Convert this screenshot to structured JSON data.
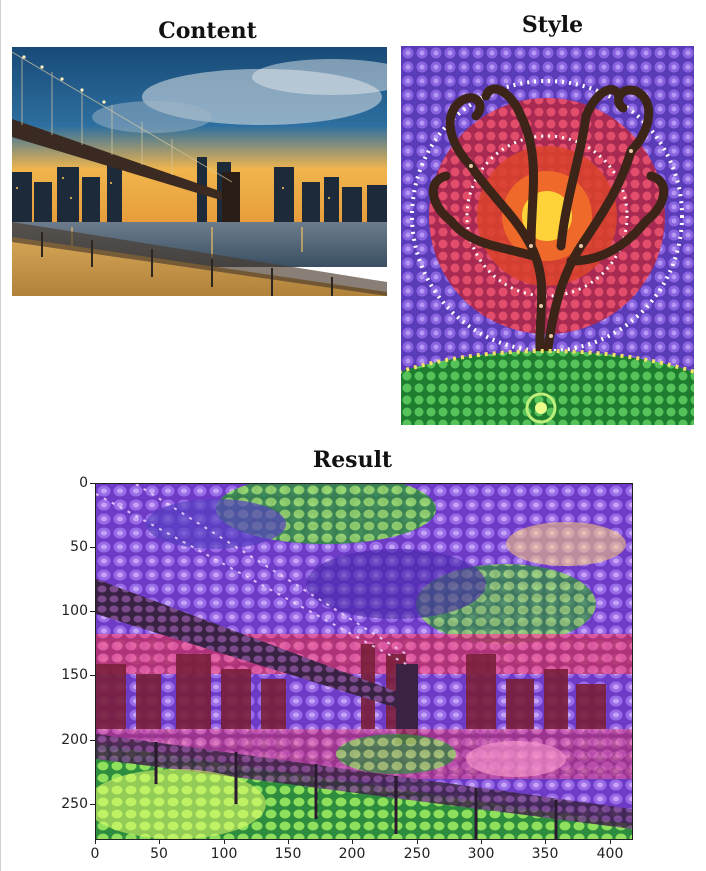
{
  "titles": {
    "content": "Content",
    "style": "Style",
    "result": "Result"
  },
  "result_axes": {
    "y_ticks": [
      "0",
      "50",
      "100",
      "150",
      "200",
      "250"
    ],
    "x_ticks": [
      "0",
      "50",
      "100",
      "150",
      "200",
      "250",
      "300",
      "350",
      "400"
    ]
  },
  "colors": {
    "sky_content": "#1f5a86",
    "sunset": "#f3b24a",
    "style_background": "#7b4fd0",
    "style_sun": "#e3452c",
    "style_tree": "#3d2418",
    "style_grass": "#3aa846",
    "result_purple": "#8b4fd8",
    "result_pink": "#e0468a"
  },
  "icons": {
    "content": "city-bridge-photo-image",
    "style": "dot-tree-painting-image",
    "result": "stylized-result-image"
  }
}
